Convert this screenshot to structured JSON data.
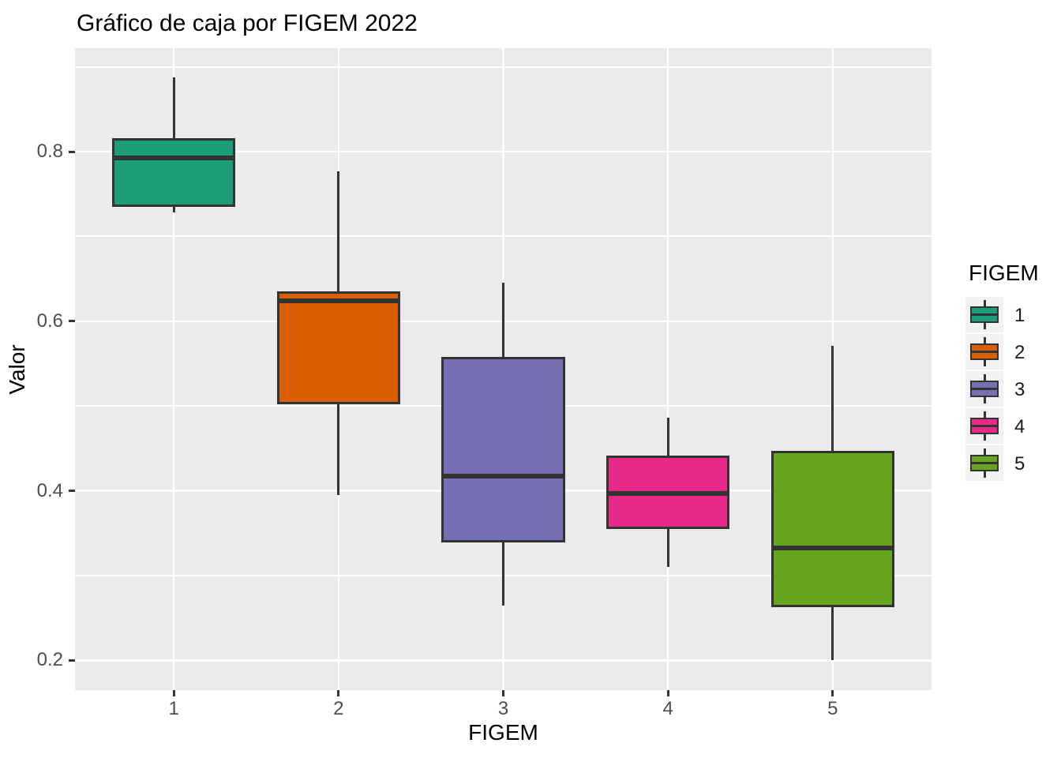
{
  "title": "Gráfico de caja por FIGEM 2022",
  "chart_data": {
    "type": "boxplot",
    "title": "Gráfico de caja por FIGEM 2022",
    "xlabel": "FIGEM",
    "ylabel": "Valor",
    "categories": [
      "1",
      "2",
      "3",
      "4",
      "5"
    ],
    "y_tick_labels": [
      "0.2",
      "0.4",
      "0.6",
      "0.8"
    ],
    "y_tick_values": [
      0.2,
      0.4,
      0.6,
      0.8
    ],
    "y_minor_values": [
      0.3,
      0.5,
      0.7,
      0.9
    ],
    "ylim": [
      0.165,
      0.922
    ],
    "grid": "major-and-minor-white-on-grey",
    "legend_position": "right",
    "series": [
      {
        "category": "1",
        "color": "#1B9E77",
        "min": 0.728,
        "q1": 0.735,
        "median": 0.793,
        "q3": 0.816,
        "max": 0.888
      },
      {
        "category": "2",
        "color": "#D95F02",
        "min": 0.395,
        "q1": 0.502,
        "median": 0.624,
        "q3": 0.635,
        "max": 0.777
      },
      {
        "category": "3",
        "color": "#7570B3",
        "min": 0.265,
        "q1": 0.339,
        "median": 0.417,
        "q3": 0.558,
        "max": 0.645
      },
      {
        "category": "4",
        "color": "#E7298A",
        "min": 0.31,
        "q1": 0.355,
        "median": 0.397,
        "q3": 0.442,
        "max": 0.486
      },
      {
        "category": "5",
        "color": "#66A61E",
        "min": 0.2,
        "q1": 0.263,
        "median": 0.333,
        "q3": 0.447,
        "max": 0.571
      }
    ]
  },
  "legend": {
    "title": "FIGEM",
    "items": [
      {
        "label": "1",
        "color": "#1B9E77"
      },
      {
        "label": "2",
        "color": "#D95F02"
      },
      {
        "label": "3",
        "color": "#7570B3"
      },
      {
        "label": "4",
        "color": "#E7298A"
      },
      {
        "label": "5",
        "color": "#66A61E"
      }
    ]
  },
  "palette": {
    "panel_background": "#EBEBEB",
    "gridline": "#FFFFFF",
    "box_outline": "#333333",
    "tick_text": "#4D4D4D",
    "title_text": "#000000",
    "legend_key_background": "#F2F2F2"
  }
}
